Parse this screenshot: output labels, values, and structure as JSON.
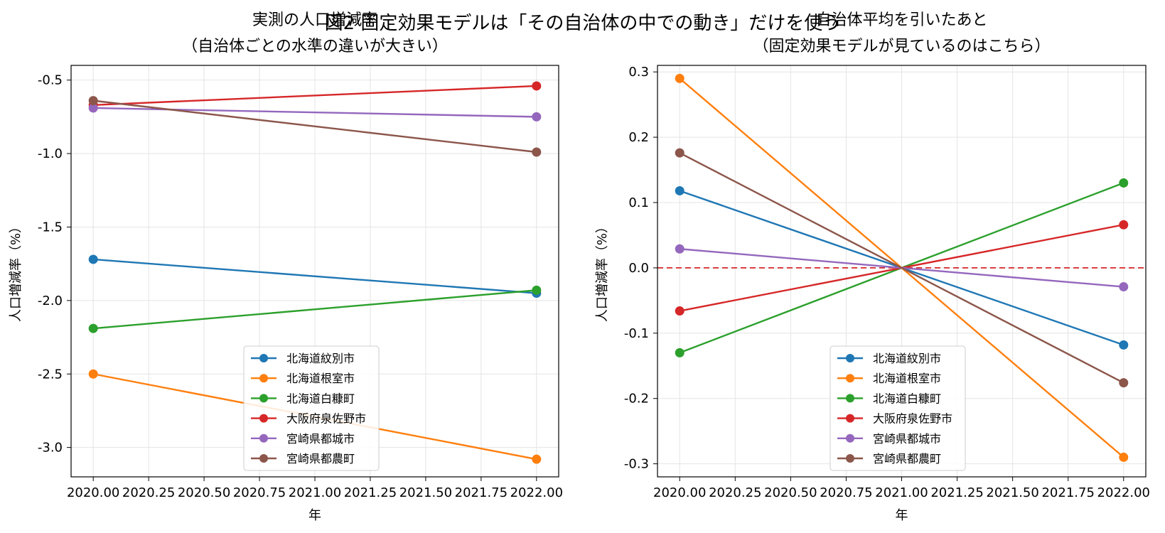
{
  "figure": {
    "suptitle": "図2 固定効果モデルは「その自治体の中での動き」だけを使う"
  },
  "chart_data": [
    {
      "type": "line",
      "title": "実測の人口増減率\n（自治体ごとの水準の違いが大きい）",
      "xlabel": "年",
      "ylabel": "人口増減率（%）",
      "xlim": [
        1979.9,
        2022.1
      ],
      "ylim": [
        -3.2,
        -0.4
      ],
      "xticks": [
        2020.0,
        2020.25,
        2020.5,
        2020.75,
        2021.0,
        2021.25,
        2021.5,
        2021.75,
        2022.0
      ],
      "xtick_labels": [
        "2020.00",
        "2020.25",
        "2020.50",
        "2020.75",
        "2021.00",
        "2021.25",
        "2021.50",
        "2021.75",
        "2022.00"
      ],
      "yticks": [
        -0.5,
        -1.0,
        -1.5,
        -2.0,
        -2.5,
        -3.0
      ],
      "ytick_labels": [
        "-0.5",
        "-1.0",
        "-1.5",
        "-2.0",
        "-2.5",
        "-3.0"
      ],
      "grid": true,
      "legend_position": "lower-center",
      "x": [
        2020,
        2022
      ],
      "series": [
        {
          "name": "北海道紋別市",
          "color": "#1f77b4",
          "values": [
            -1.72,
            -1.95
          ]
        },
        {
          "name": "北海道根室市",
          "color": "#ff7f0e",
          "values": [
            -2.5,
            -3.08
          ]
        },
        {
          "name": "北海道白糠町",
          "color": "#2ca02c",
          "values": [
            -2.19,
            -1.93
          ]
        },
        {
          "name": "大阪府泉佐野市",
          "color": "#d62728",
          "values": [
            -0.67,
            -0.54
          ]
        },
        {
          "name": "宮崎県都城市",
          "color": "#9467bd",
          "values": [
            -0.69,
            -0.75
          ]
        },
        {
          "name": "宮崎県都農町",
          "color": "#8c564b",
          "values": [
            -0.64,
            -0.99
          ]
        }
      ]
    },
    {
      "type": "line",
      "title": "自治体平均を引いたあと\n（固定効果モデルが見ているのはこちら）",
      "xlabel": "年",
      "ylabel": "人口増減率（%）",
      "xlim": [
        2019.9,
        2022.1
      ],
      "ylim": [
        -0.32,
        0.31
      ],
      "xticks": [
        2020.0,
        2020.25,
        2020.5,
        2020.75,
        2021.0,
        2021.25,
        2021.5,
        2021.75,
        2022.0
      ],
      "xtick_labels": [
        "2020.00",
        "2020.25",
        "2020.50",
        "2020.75",
        "2021.00",
        "2021.25",
        "2021.50",
        "2021.75",
        "2022.00"
      ],
      "yticks": [
        0.3,
        0.2,
        0.1,
        0.0,
        -0.1,
        -0.2,
        -0.3
      ],
      "ytick_labels": [
        "0.3",
        "0.2",
        "0.1",
        "0.0",
        "-0.1",
        "-0.2",
        "-0.3"
      ],
      "grid": true,
      "legend_position": "lower-center",
      "reference_line": {
        "y": 0.0,
        "color": "#d62728",
        "style": "dashed"
      },
      "x": [
        2020,
        2021,
        2022
      ],
      "series": [
        {
          "name": "北海道紋別市",
          "color": "#1f77b4",
          "values": [
            0.118,
            0.0,
            -0.118
          ],
          "marker_points": [
            0,
            2
          ]
        },
        {
          "name": "北海道根室市",
          "color": "#ff7f0e",
          "values": [
            0.29,
            0.0,
            -0.29
          ],
          "marker_points": [
            0,
            2
          ]
        },
        {
          "name": "北海道白糠町",
          "color": "#2ca02c",
          "values": [
            -0.13,
            0.0,
            0.13
          ],
          "marker_points": [
            0,
            2
          ]
        },
        {
          "name": "大阪府泉佐野市",
          "color": "#d62728",
          "values": [
            -0.066,
            0.0,
            0.066
          ],
          "marker_points": [
            0,
            2
          ]
        },
        {
          "name": "宮崎県都城市",
          "color": "#9467bd",
          "values": [
            0.029,
            0.0,
            -0.029
          ],
          "marker_points": [
            0,
            2
          ]
        },
        {
          "name": "宮崎県都農町",
          "color": "#8c564b",
          "values": [
            0.176,
            0.0,
            -0.176
          ],
          "marker_points": [
            0,
            2
          ]
        }
      ]
    }
  ]
}
